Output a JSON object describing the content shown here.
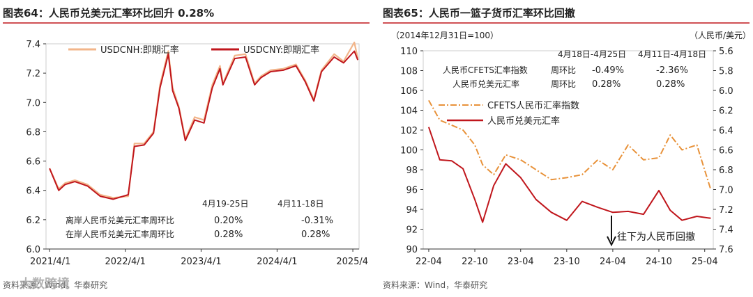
{
  "chart_data": [
    {
      "type": "line",
      "title": "图表64：人民币兑美元汇率环比回升 0.28%",
      "xlabel": "",
      "ylabel": "",
      "ylim": [
        6.0,
        7.4
      ],
      "y_ticks": [
        "6.0",
        "6.2",
        "6.4",
        "6.6",
        "6.8",
        "7.0",
        "7.2",
        "7.4"
      ],
      "x_ticks": [
        "2021/4/1",
        "2022/4/1",
        "2023/4/1",
        "2024/4/1",
        "2025/4"
      ],
      "legend_position": "top",
      "x_dates": [
        "2021-04-01",
        "2021-05-15",
        "2021-06-15",
        "2021-08-01",
        "2021-10-01",
        "2021-12-01",
        "2022-02-01",
        "2022-04-15",
        "2022-05-15",
        "2022-07-01",
        "2022-08-15",
        "2022-09-15",
        "2022-10-25",
        "2022-11-15",
        "2022-12-15",
        "2023-01-15",
        "2023-03-01",
        "2023-04-15",
        "2023-05-25",
        "2023-07-01",
        "2023-07-15",
        "2023-09-10",
        "2023-11-01",
        "2023-12-15",
        "2024-01-15",
        "2024-03-01",
        "2024-05-01",
        "2024-07-01",
        "2024-08-15",
        "2024-09-25",
        "2024-11-01",
        "2025-01-01",
        "2025-02-15",
        "2025-04-08",
        "2025-04-25"
      ],
      "series": [
        {
          "name": "USDCNH:即期汇率",
          "color": "#f2b58a",
          "values": [
            6.55,
            6.41,
            6.45,
            6.47,
            6.44,
            6.37,
            6.35,
            6.36,
            6.72,
            6.72,
            6.8,
            7.12,
            7.35,
            7.1,
            6.97,
            6.75,
            6.9,
            6.88,
            7.12,
            7.25,
            7.13,
            7.32,
            7.33,
            7.13,
            7.18,
            7.22,
            7.23,
            7.26,
            7.15,
            7.02,
            7.22,
            7.33,
            7.28,
            7.41,
            7.3
          ]
        },
        {
          "name": "USDCNY:即期汇率",
          "color": "#c0161c",
          "values": [
            6.55,
            6.4,
            6.44,
            6.46,
            6.43,
            6.36,
            6.34,
            6.37,
            6.7,
            6.71,
            6.79,
            7.1,
            7.33,
            7.08,
            6.96,
            6.74,
            6.88,
            6.86,
            7.1,
            7.23,
            7.12,
            7.3,
            7.31,
            7.12,
            7.17,
            7.21,
            7.22,
            7.25,
            7.14,
            7.01,
            7.21,
            7.31,
            7.27,
            7.35,
            7.29
          ]
        }
      ],
      "table": {
        "headers": [
          "4月19-25日",
          "4月11-18日"
        ],
        "rows": [
          {
            "label": "离岸人民币兑美元汇率周环比",
            "values": [
              "0.20%",
              "-0.31%"
            ]
          },
          {
            "label": "在岸人民币兑美元汇率周环比",
            "values": [
              "0.28%",
              "0.28%"
            ]
          }
        ]
      },
      "source_text": "资料来源：Wind，华泰研究"
    },
    {
      "type": "line",
      "title": "图表65：人民币一篮子货币汇率环比回撤",
      "subtitle_left": "（2014年12月31日=100）",
      "subtitle_right": "（人民币/美元）",
      "ylim_left": [
        90,
        110
      ],
      "ylim_right_inverted": [
        5.6,
        7.6
      ],
      "y_ticks_left": [
        "110",
        "108",
        "106",
        "104",
        "102",
        "100",
        "98",
        "96",
        "94",
        "92",
        "90"
      ],
      "y_ticks_right": [
        "5.6",
        "5.8",
        "6.0",
        "6.2",
        "6.4",
        "6.6",
        "6.8",
        "7.0",
        "7.2",
        "7.4",
        "7.6"
      ],
      "x_ticks": [
        "22-04",
        "22-10",
        "23-04",
        "23-10",
        "24-04",
        "24-10",
        "25-04"
      ],
      "x_dates": [
        "2022-04-01",
        "2022-05-15",
        "2022-07-01",
        "2022-08-15",
        "2022-10-01",
        "2022-11-01",
        "2022-12-15",
        "2023-02-01",
        "2023-04-01",
        "2023-06-01",
        "2023-08-01",
        "2023-10-01",
        "2023-12-01",
        "2024-02-01",
        "2024-04-01",
        "2024-06-01",
        "2024-08-01",
        "2024-10-01",
        "2024-11-15",
        "2025-01-01",
        "2025-03-01",
        "2025-04-25"
      ],
      "series": [
        {
          "name": "CFETS人民币汇率指数",
          "axis": "left",
          "color": "#e8923a",
          "dashed": true,
          "values": [
            105.0,
            103.0,
            102.5,
            102.0,
            100.5,
            98.5,
            97.5,
            99.5,
            99.0,
            98.0,
            97.0,
            97.2,
            97.5,
            99.0,
            98.0,
            100.5,
            99.0,
            99.2,
            101.5,
            100.0,
            100.5,
            96.0
          ]
        },
        {
          "name": "人民币兑美元汇率",
          "axis": "right",
          "color": "#c0161c",
          "dashed": false,
          "values": [
            6.37,
            6.7,
            6.71,
            6.79,
            7.1,
            7.33,
            6.96,
            6.74,
            6.88,
            7.1,
            7.23,
            7.31,
            7.12,
            7.18,
            7.23,
            7.22,
            7.25,
            7.01,
            7.21,
            7.31,
            7.27,
            7.29
          ]
        }
      ],
      "table": {
        "headers": [
          "4月18日-4月25日",
          "4月11日-4月18日"
        ],
        "row_label_header": "周环比",
        "rows": [
          {
            "label": "人民币CFETS汇率指数",
            "values": [
              "-0.49%",
              "-2.36%"
            ]
          },
          {
            "label": "人民币兑美元汇率",
            "values": [
              "0.28%",
              "0.28%"
            ]
          }
        ]
      },
      "annotation": "往下为人民币回撤",
      "source_text": "资料来源：Wind，华泰研究"
    }
  ],
  "watermark_text": "大数跨境"
}
